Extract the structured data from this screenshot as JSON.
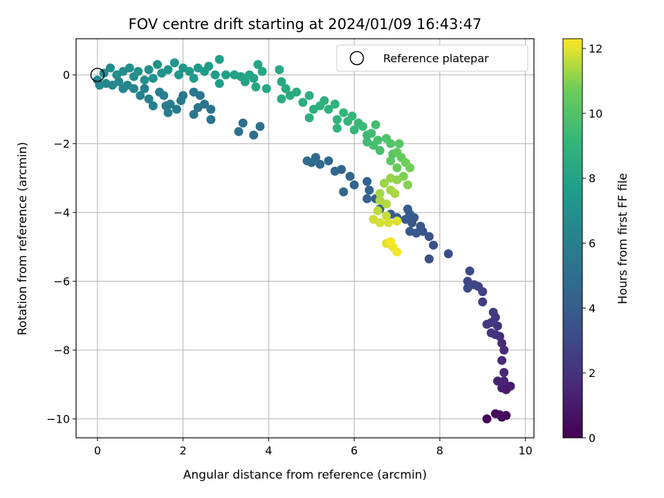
{
  "chart_data": {
    "type": "scatter",
    "title": "FOV centre drift starting at 2024/01/09 16:43:47",
    "xlabel": "Angular distance from reference (arcmin)",
    "ylabel": "Rotation from reference (arcmin)",
    "xlim": [
      -0.5,
      10.2
    ],
    "ylim": [
      -10.55,
      1.05
    ],
    "xticks": [
      0,
      2,
      4,
      6,
      8,
      10
    ],
    "yticks": [
      0,
      -2,
      -4,
      -6,
      -8,
      -10
    ],
    "grid": true,
    "legend": {
      "position": "top-right",
      "entries": [
        "Reference platepar"
      ]
    },
    "colorbar": {
      "label": "Hours from first FF file",
      "range": [
        0,
        12.3
      ],
      "ticks": [
        0,
        2,
        4,
        6,
        8,
        10,
        12
      ],
      "colormap": "viridis"
    },
    "reference_point": {
      "x": 0,
      "y": 0
    },
    "points": [
      {
        "x": 9.1,
        "y": -10.0,
        "c": 0.1
      },
      {
        "x": 9.3,
        "y": -9.85,
        "c": 0.2
      },
      {
        "x": 9.45,
        "y": -9.95,
        "c": 0.3
      },
      {
        "x": 9.55,
        "y": -9.9,
        "c": 0.4
      },
      {
        "x": 9.4,
        "y": -9.88,
        "c": 0.5
      },
      {
        "x": 9.55,
        "y": -9.15,
        "c": 1.0
      },
      {
        "x": 9.65,
        "y": -9.05,
        "c": 1.1
      },
      {
        "x": 9.45,
        "y": -9.1,
        "c": 1.2
      },
      {
        "x": 9.35,
        "y": -8.9,
        "c": 1.3
      },
      {
        "x": 9.5,
        "y": -8.9,
        "c": 1.4
      },
      {
        "x": 9.5,
        "y": -8.65,
        "c": 1.5
      },
      {
        "x": 9.45,
        "y": -8.3,
        "c": 1.6
      },
      {
        "x": 9.5,
        "y": -8.0,
        "c": 1.7
      },
      {
        "x": 9.45,
        "y": -7.8,
        "c": 1.8
      },
      {
        "x": 9.4,
        "y": -7.6,
        "c": 1.9
      },
      {
        "x": 9.3,
        "y": -7.55,
        "c": 2.0
      },
      {
        "x": 9.2,
        "y": -7.5,
        "c": 2.05
      },
      {
        "x": 9.35,
        "y": -7.3,
        "c": 2.1
      },
      {
        "x": 9.2,
        "y": -7.2,
        "c": 2.2
      },
      {
        "x": 9.1,
        "y": -7.25,
        "c": 2.3
      },
      {
        "x": 9.3,
        "y": -7.05,
        "c": 2.35
      },
      {
        "x": 9.25,
        "y": -6.9,
        "c": 2.4
      },
      {
        "x": 9.0,
        "y": -6.6,
        "c": 2.6
      },
      {
        "x": 9.0,
        "y": -6.3,
        "c": 2.7
      },
      {
        "x": 8.9,
        "y": -6.15,
        "c": 2.8
      },
      {
        "x": 8.8,
        "y": -6.1,
        "c": 2.9
      },
      {
        "x": 8.65,
        "y": -6.0,
        "c": 3.0
      },
      {
        "x": 8.65,
        "y": -6.2,
        "c": 3.05
      },
      {
        "x": 8.7,
        "y": -5.7,
        "c": 3.1
      },
      {
        "x": 8.2,
        "y": -5.2,
        "c": 3.3
      },
      {
        "x": 7.75,
        "y": -5.35,
        "c": 3.4
      },
      {
        "x": 7.85,
        "y": -4.95,
        "c": 3.5
      },
      {
        "x": 7.75,
        "y": -4.7,
        "c": 3.55
      },
      {
        "x": 7.6,
        "y": -4.55,
        "c": 3.6
      },
      {
        "x": 7.45,
        "y": -4.6,
        "c": 3.65
      },
      {
        "x": 7.3,
        "y": -4.55,
        "c": 3.7
      },
      {
        "x": 7.55,
        "y": -4.4,
        "c": 3.75
      },
      {
        "x": 7.35,
        "y": -4.3,
        "c": 3.8
      },
      {
        "x": 7.2,
        "y": -4.2,
        "c": 3.85
      },
      {
        "x": 7.4,
        "y": -4.15,
        "c": 3.9
      },
      {
        "x": 7.25,
        "y": -3.9,
        "c": 3.95
      },
      {
        "x": 7.3,
        "y": -4.05,
        "c": 4.0
      },
      {
        "x": 7.0,
        "y": -4.15,
        "c": 4.05
      },
      {
        "x": 6.85,
        "y": -4.05,
        "c": 4.1
      },
      {
        "x": 6.6,
        "y": -3.9,
        "c": 4.15
      },
      {
        "x": 6.5,
        "y": -3.6,
        "c": 4.2
      },
      {
        "x": 6.3,
        "y": -3.6,
        "c": 4.25
      },
      {
        "x": 6.35,
        "y": -3.35,
        "c": 4.3
      },
      {
        "x": 6.3,
        "y": -3.1,
        "c": 4.35
      },
      {
        "x": 6.0,
        "y": -3.2,
        "c": 4.4
      },
      {
        "x": 5.9,
        "y": -2.95,
        "c": 4.45
      },
      {
        "x": 5.7,
        "y": -2.75,
        "c": 4.5
      },
      {
        "x": 5.55,
        "y": -2.8,
        "c": 4.55
      },
      {
        "x": 5.75,
        "y": -3.4,
        "c": 4.6
      },
      {
        "x": 5.4,
        "y": -2.5,
        "c": 4.7
      },
      {
        "x": 5.2,
        "y": -2.6,
        "c": 4.75
      },
      {
        "x": 5.1,
        "y": -2.4,
        "c": 4.8
      },
      {
        "x": 4.9,
        "y": -2.5,
        "c": 4.85
      },
      {
        "x": 5.0,
        "y": -2.55,
        "c": 4.9
      },
      {
        "x": 3.8,
        "y": -1.5,
        "c": 5.0
      },
      {
        "x": 3.65,
        "y": -1.75,
        "c": 5.05
      },
      {
        "x": 3.4,
        "y": -1.4,
        "c": 5.1
      },
      {
        "x": 3.3,
        "y": -1.65,
        "c": 5.15
      },
      {
        "x": 2.65,
        "y": -1.3,
        "c": 5.25
      },
      {
        "x": 2.65,
        "y": -1.0,
        "c": 5.3
      },
      {
        "x": 2.5,
        "y": -0.85,
        "c": 5.35
      },
      {
        "x": 2.35,
        "y": -0.95,
        "c": 5.4
      },
      {
        "x": 2.25,
        "y": -1.15,
        "c": 5.45
      },
      {
        "x": 2.4,
        "y": -0.6,
        "c": 5.5
      },
      {
        "x": 2.25,
        "y": -0.5,
        "c": 5.55
      },
      {
        "x": 2.0,
        "y": -0.6,
        "c": 5.6
      },
      {
        "x": 1.95,
        "y": -0.75,
        "c": 5.65
      },
      {
        "x": 1.85,
        "y": -1.0,
        "c": 5.7
      },
      {
        "x": 1.7,
        "y": -0.85,
        "c": 5.75
      },
      {
        "x": 1.6,
        "y": -0.9,
        "c": 5.8
      },
      {
        "x": 1.65,
        "y": -1.1,
        "c": 5.85
      },
      {
        "x": 1.55,
        "y": -0.6,
        "c": 5.9
      },
      {
        "x": 1.45,
        "y": -0.5,
        "c": 5.95
      },
      {
        "x": 1.3,
        "y": -0.9,
        "c": 6.0
      },
      {
        "x": 1.2,
        "y": -0.7,
        "c": 6.05
      },
      {
        "x": 1.1,
        "y": -0.4,
        "c": 6.1
      },
      {
        "x": 1.0,
        "y": -0.6,
        "c": 6.15
      },
      {
        "x": 0.85,
        "y": -0.4,
        "c": 6.2
      },
      {
        "x": 0.7,
        "y": -0.3,
        "c": 6.25
      },
      {
        "x": 0.6,
        "y": -0.4,
        "c": 6.3
      },
      {
        "x": 0.5,
        "y": -0.2,
        "c": 6.35
      },
      {
        "x": 0.35,
        "y": -0.3,
        "c": 6.4
      },
      {
        "x": 0.2,
        "y": -0.25,
        "c": 6.45
      },
      {
        "x": 0.05,
        "y": -0.3,
        "c": 6.5
      },
      {
        "x": 0.0,
        "y": -0.15,
        "c": 6.55
      },
      {
        "x": 0.15,
        "y": 0.05,
        "c": 6.6
      },
      {
        "x": 0.3,
        "y": 0.2,
        "c": 6.65
      },
      {
        "x": 0.45,
        "y": 0.0,
        "c": 6.7
      },
      {
        "x": 0.6,
        "y": 0.1,
        "c": 6.75
      },
      {
        "x": 0.75,
        "y": 0.2,
        "c": 6.8
      },
      {
        "x": 0.85,
        "y": -0.05,
        "c": 6.85
      },
      {
        "x": 0.95,
        "y": 0.1,
        "c": 6.9
      },
      {
        "x": 1.1,
        "y": -0.15,
        "c": 6.95
      },
      {
        "x": 1.2,
        "y": 0.15,
        "c": 7.0
      },
      {
        "x": 1.3,
        "y": -0.1,
        "c": 7.05
      },
      {
        "x": 1.4,
        "y": 0.3,
        "c": 7.1
      },
      {
        "x": 1.5,
        "y": 0.05,
        "c": 7.15
      },
      {
        "x": 1.65,
        "y": 0.15,
        "c": 7.2
      },
      {
        "x": 1.8,
        "y": 0.35,
        "c": 7.25
      },
      {
        "x": 1.9,
        "y": 0.0,
        "c": 7.3
      },
      {
        "x": 2.0,
        "y": 0.2,
        "c": 7.35
      },
      {
        "x": 2.15,
        "y": 0.1,
        "c": 7.4
      },
      {
        "x": 2.25,
        "y": -0.1,
        "c": 7.45
      },
      {
        "x": 2.35,
        "y": 0.2,
        "c": 7.5
      },
      {
        "x": 2.5,
        "y": 0.1,
        "c": 7.55
      },
      {
        "x": 2.6,
        "y": 0.25,
        "c": 7.6
      },
      {
        "x": 2.75,
        "y": 0.0,
        "c": 7.65
      },
      {
        "x": 2.85,
        "y": -0.25,
        "c": 7.7
      },
      {
        "x": 2.85,
        "y": 0.45,
        "c": 7.75
      },
      {
        "x": 3.0,
        "y": 0.0,
        "c": 7.8
      },
      {
        "x": 3.2,
        "y": 0.0,
        "c": 7.85
      },
      {
        "x": 3.35,
        "y": -0.05,
        "c": 7.9
      },
      {
        "x": 3.45,
        "y": -0.2,
        "c": 7.95
      },
      {
        "x": 3.55,
        "y": 0.0,
        "c": 8.0
      },
      {
        "x": 3.65,
        "y": -0.1,
        "c": 8.05
      },
      {
        "x": 3.75,
        "y": 0.3,
        "c": 8.1
      },
      {
        "x": 3.85,
        "y": 0.1,
        "c": 8.15
      },
      {
        "x": 3.7,
        "y": -0.35,
        "c": 8.2
      },
      {
        "x": 3.95,
        "y": -0.4,
        "c": 8.25
      },
      {
        "x": 4.25,
        "y": 0.15,
        "c": 8.3
      },
      {
        "x": 4.3,
        "y": -0.2,
        "c": 8.35
      },
      {
        "x": 4.4,
        "y": -0.4,
        "c": 8.4
      },
      {
        "x": 4.5,
        "y": -0.6,
        "c": 8.45
      },
      {
        "x": 4.3,
        "y": -0.7,
        "c": 8.5
      },
      {
        "x": 4.65,
        "y": -0.5,
        "c": 8.55
      },
      {
        "x": 4.8,
        "y": -0.8,
        "c": 8.6
      },
      {
        "x": 4.95,
        "y": -0.6,
        "c": 8.65
      },
      {
        "x": 5.05,
        "y": -1.0,
        "c": 8.7
      },
      {
        "x": 5.2,
        "y": -0.9,
        "c": 8.75
      },
      {
        "x": 4.95,
        "y": -1.25,
        "c": 8.8
      },
      {
        "x": 5.3,
        "y": -0.75,
        "c": 8.85
      },
      {
        "x": 5.4,
        "y": -1.0,
        "c": 8.9
      },
      {
        "x": 5.55,
        "y": -0.85,
        "c": 8.95
      },
      {
        "x": 5.6,
        "y": -1.3,
        "c": 9.0
      },
      {
        "x": 5.6,
        "y": -1.55,
        "c": 9.05
      },
      {
        "x": 5.75,
        "y": -1.1,
        "c": 9.1
      },
      {
        "x": 5.85,
        "y": -1.35,
        "c": 9.15
      },
      {
        "x": 5.95,
        "y": -1.2,
        "c": 9.2
      },
      {
        "x": 6.0,
        "y": -1.6,
        "c": 9.25
      },
      {
        "x": 6.1,
        "y": -1.4,
        "c": 9.3
      },
      {
        "x": 6.2,
        "y": -1.5,
        "c": 9.35
      },
      {
        "x": 6.3,
        "y": -1.75,
        "c": 9.4
      },
      {
        "x": 6.3,
        "y": -1.95,
        "c": 9.5
      },
      {
        "x": 6.4,
        "y": -1.7,
        "c": 9.55
      },
      {
        "x": 6.5,
        "y": -1.45,
        "c": 9.6
      },
      {
        "x": 6.55,
        "y": -1.9,
        "c": 9.7
      },
      {
        "x": 6.45,
        "y": -2.05,
        "c": 9.75
      },
      {
        "x": 6.6,
        "y": -2.2,
        "c": 9.8
      },
      {
        "x": 6.75,
        "y": -1.85,
        "c": 9.9
      },
      {
        "x": 6.85,
        "y": -2.0,
        "c": 10.0
      },
      {
        "x": 6.9,
        "y": -2.3,
        "c": 10.1
      },
      {
        "x": 7.05,
        "y": -2.0,
        "c": 10.2
      },
      {
        "x": 6.85,
        "y": -2.5,
        "c": 10.3
      },
      {
        "x": 7.0,
        "y": -2.25,
        "c": 10.4
      },
      {
        "x": 7.1,
        "y": -2.4,
        "c": 10.5
      },
      {
        "x": 7.0,
        "y": -2.7,
        "c": 10.6
      },
      {
        "x": 7.2,
        "y": -2.55,
        "c": 10.7
      },
      {
        "x": 7.3,
        "y": -2.7,
        "c": 10.8
      },
      {
        "x": 7.15,
        "y": -2.95,
        "c": 10.9
      },
      {
        "x": 7.25,
        "y": -3.2,
        "c": 11.0
      },
      {
        "x": 7.0,
        "y": -3.05,
        "c": 11.1
      },
      {
        "x": 6.85,
        "y": -3.0,
        "c": 11.2
      },
      {
        "x": 6.7,
        "y": -3.15,
        "c": 11.25
      },
      {
        "x": 6.6,
        "y": -3.45,
        "c": 11.3
      },
      {
        "x": 6.85,
        "y": -3.35,
        "c": 11.35
      },
      {
        "x": 6.95,
        "y": -3.45,
        "c": 11.4
      },
      {
        "x": 6.6,
        "y": -3.65,
        "c": 11.45
      },
      {
        "x": 6.75,
        "y": -3.75,
        "c": 11.5
      },
      {
        "x": 6.55,
        "y": -3.95,
        "c": 11.6
      },
      {
        "x": 6.75,
        "y": -4.1,
        "c": 11.7
      },
      {
        "x": 6.45,
        "y": -4.2,
        "c": 11.8
      },
      {
        "x": 6.6,
        "y": -4.3,
        "c": 11.85
      },
      {
        "x": 6.8,
        "y": -4.3,
        "c": 11.9
      },
      {
        "x": 7.0,
        "y": -4.25,
        "c": 11.95
      },
      {
        "x": 6.75,
        "y": -4.9,
        "c": 12.0
      },
      {
        "x": 6.9,
        "y": -5.0,
        "c": 12.1
      },
      {
        "x": 7.0,
        "y": -5.15,
        "c": 12.2
      },
      {
        "x": 6.85,
        "y": -4.85,
        "c": 12.25
      }
    ]
  }
}
